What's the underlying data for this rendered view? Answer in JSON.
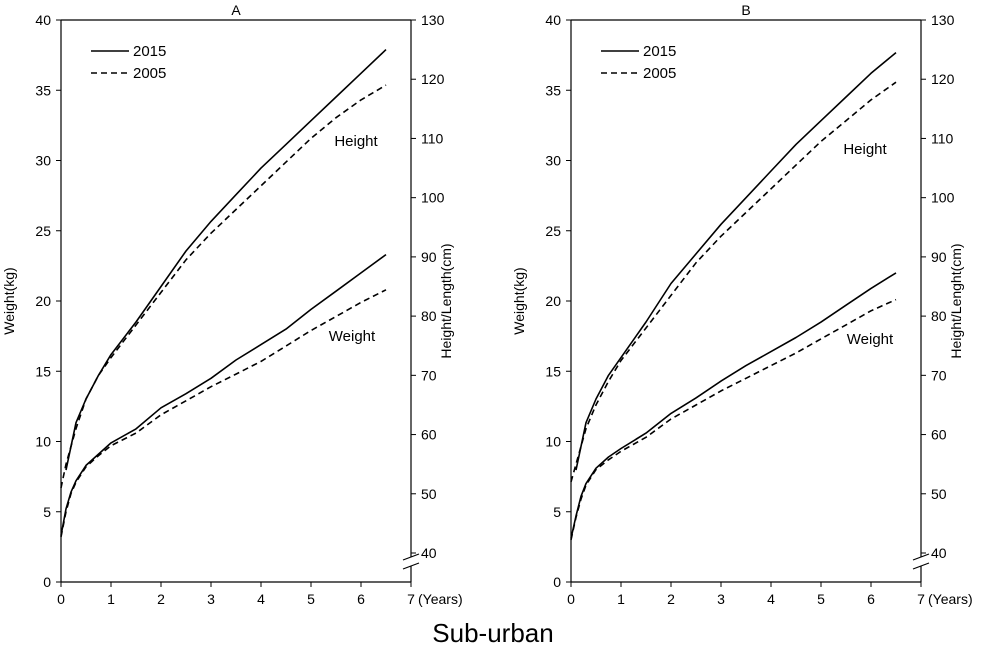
{
  "figure": {
    "caption": "Sub-urban"
  },
  "chart_data": [
    {
      "type": "line",
      "title": "A",
      "xlabel_unit": "(Years)",
      "ylabel_left": "Weight(kg)",
      "ylabel_right": "Height/Length(cm)",
      "xlim": [
        0,
        7
      ],
      "x_ticks": [
        "0",
        "1",
        "2",
        "3",
        "4",
        "5",
        "6",
        "7"
      ],
      "ylim_left": [
        0,
        40
      ],
      "y_left_ticks": [
        "0",
        "5",
        "10",
        "15",
        "20",
        "25",
        "30",
        "35",
        "40"
      ],
      "ylim_right": [
        40,
        130
      ],
      "y_right_ticks": [
        "40",
        "50",
        "60",
        "70",
        "80",
        "90",
        "100",
        "110",
        "120",
        "130"
      ],
      "right_axis_break": true,
      "grid": false,
      "legend_position": "top-left",
      "legend": [
        "2015",
        "2005"
      ],
      "annotations": [
        "Height",
        "Weight"
      ],
      "series": [
        {
          "name": "2015",
          "group": "Weight",
          "axis": "left",
          "style": "solid",
          "x": [
            0,
            0.1,
            0.2,
            0.3,
            0.5,
            0.75,
            1,
            1.5,
            2,
            2.5,
            3,
            3.5,
            4,
            4.5,
            5,
            5.5,
            6,
            6.5
          ],
          "y": [
            3.3,
            5.2,
            6.4,
            7.2,
            8.3,
            9.1,
            9.9,
            10.9,
            12.4,
            13.4,
            14.5,
            15.8,
            16.9,
            18.0,
            19.4,
            20.7,
            22.0,
            23.3
          ]
        },
        {
          "name": "2005",
          "group": "Weight",
          "axis": "left",
          "style": "dashed",
          "x": [
            0,
            0.1,
            0.2,
            0.3,
            0.5,
            0.75,
            1,
            1.5,
            2,
            2.5,
            3,
            3.5,
            4,
            4.5,
            5,
            5.5,
            6,
            6.5
          ],
          "y": [
            3.2,
            5.0,
            6.3,
            7.1,
            8.2,
            9.0,
            9.7,
            10.6,
            11.9,
            12.9,
            13.9,
            14.8,
            15.7,
            16.8,
            17.9,
            18.9,
            19.9,
            20.8
          ]
        },
        {
          "name": "2015",
          "group": "Height",
          "axis": "right",
          "style": "solid",
          "x": [
            0.1,
            0.2,
            0.3,
            0.5,
            0.75,
            1,
            1.5,
            2,
            2.5,
            3,
            3.5,
            4,
            4.5,
            5,
            5.5,
            6,
            6.5
          ],
          "y": [
            54,
            58,
            62,
            66,
            70,
            73.5,
            79,
            85,
            91,
            96,
            100.5,
            105,
            109,
            113,
            117,
            121,
            125
          ]
        },
        {
          "name": "2005",
          "group": "Height",
          "axis": "right",
          "style": "dashed",
          "x": [
            0,
            0.1,
            0.2,
            0.3,
            0.5,
            0.75,
            1,
            1.5,
            2,
            2.5,
            3,
            3.5,
            4,
            4.5,
            5,
            5.5,
            6,
            6.5
          ],
          "y": [
            51,
            55,
            58,
            61,
            66,
            70,
            73,
            78.5,
            84,
            89.5,
            94,
            98,
            102,
            106,
            110,
            113.5,
            116.5,
            119
          ]
        }
      ]
    },
    {
      "type": "line",
      "title": "B",
      "xlabel_unit": "(Years)",
      "ylabel_left": "Weight(kg)",
      "ylabel_right": "Height/Lenght(cm)",
      "xlim": [
        0,
        7
      ],
      "x_ticks": [
        "0",
        "1",
        "2",
        "3",
        "4",
        "5",
        "6",
        "7"
      ],
      "ylim_left": [
        0,
        40
      ],
      "y_left_ticks": [
        "0",
        "5",
        "10",
        "15",
        "20",
        "25",
        "30",
        "35",
        "40"
      ],
      "ylim_right": [
        40,
        130
      ],
      "y_right_ticks": [
        "40",
        "50",
        "60",
        "70",
        "80",
        "90",
        "100",
        "110",
        "120",
        "130"
      ],
      "right_axis_break": true,
      "grid": false,
      "legend_position": "top-left",
      "legend": [
        "2015",
        "2005"
      ],
      "annotations": [
        "Height",
        "Weight"
      ],
      "series": [
        {
          "name": "2015",
          "group": "Weight",
          "axis": "left",
          "style": "solid",
          "x": [
            0,
            0.1,
            0.2,
            0.3,
            0.5,
            0.75,
            1,
            1.5,
            2,
            2.5,
            3,
            3.5,
            4,
            4.5,
            5,
            5.5,
            6,
            6.5
          ],
          "y": [
            3.1,
            4.7,
            6.1,
            7.0,
            8.1,
            8.9,
            9.5,
            10.6,
            12.0,
            13.1,
            14.3,
            15.4,
            16.4,
            17.4,
            18.5,
            19.7,
            20.9,
            22.0
          ]
        },
        {
          "name": "2005",
          "group": "Weight",
          "axis": "left",
          "style": "dashed",
          "x": [
            0,
            0.1,
            0.2,
            0.3,
            0.5,
            0.75,
            1,
            1.5,
            2,
            2.5,
            3,
            3.5,
            4,
            4.5,
            5,
            5.5,
            6,
            6.5
          ],
          "y": [
            3.0,
            4.6,
            5.9,
            6.9,
            8.0,
            8.7,
            9.3,
            10.3,
            11.6,
            12.6,
            13.6,
            14.5,
            15.4,
            16.3,
            17.3,
            18.3,
            19.3,
            20.1
          ]
        },
        {
          "name": "2015",
          "group": "Height",
          "axis": "right",
          "style": "solid",
          "x": [
            0.1,
            0.2,
            0.3,
            0.5,
            0.75,
            1,
            1.5,
            2,
            2.5,
            3,
            3.5,
            4,
            4.5,
            5,
            5.5,
            6,
            6.5
          ],
          "y": [
            54,
            58,
            62,
            66,
            70,
            73,
            79,
            85.5,
            90.5,
            95.5,
            100,
            104.5,
            109,
            113,
            117,
            121,
            124.5
          ]
        },
        {
          "name": "2005",
          "group": "Height",
          "axis": "right",
          "style": "dashed",
          "x": [
            0,
            0.1,
            0.2,
            0.3,
            0.5,
            0.75,
            1,
            1.5,
            2,
            2.5,
            3,
            3.5,
            4,
            4.5,
            5,
            5.5,
            6,
            6.5
          ],
          "y": [
            52,
            55,
            58,
            61,
            65,
            69,
            72.5,
            78,
            83.5,
            89,
            93.5,
            97.5,
            101.5,
            105.5,
            109.5,
            113,
            116.5,
            119.5
          ]
        }
      ]
    }
  ]
}
